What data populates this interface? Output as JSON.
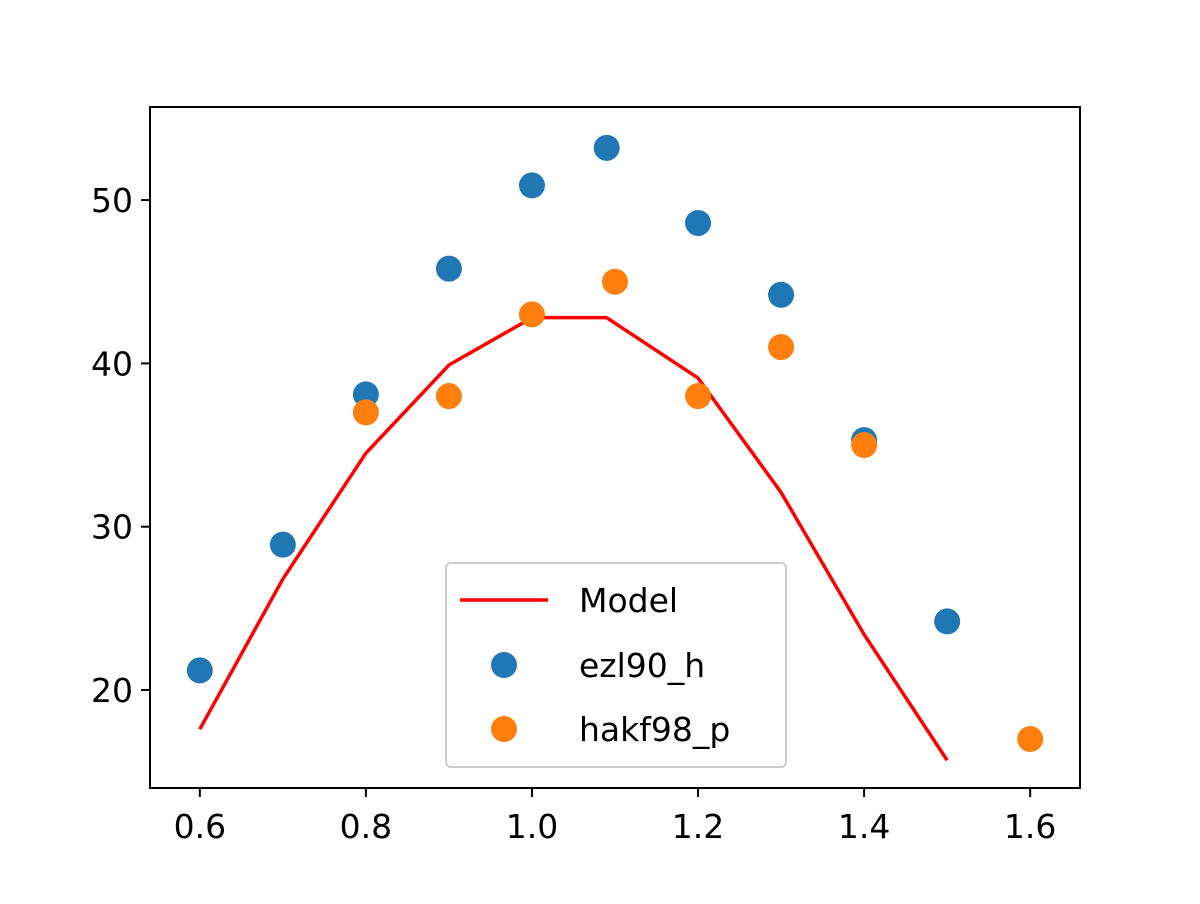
{
  "chart_data": {
    "type": "scatter",
    "title": "",
    "xlabel": "",
    "ylabel": "",
    "xlim": [
      0.54,
      1.66
    ],
    "ylim": [
      14,
      55.7
    ],
    "xticks": [
      0.6,
      0.8,
      1.0,
      1.2,
      1.4,
      1.6
    ],
    "xtick_labels": [
      "0.6",
      "0.8",
      "1.0",
      "1.2",
      "1.4",
      "1.6"
    ],
    "yticks": [
      20,
      30,
      40,
      50
    ],
    "ytick_labels": [
      "20",
      "30",
      "40",
      "50"
    ],
    "grid": false,
    "legend_position": "lower-center",
    "series": [
      {
        "name": "Model",
        "kind": "line",
        "color": "#ff0000",
        "x": [
          0.6,
          0.7,
          0.8,
          0.9,
          1.0,
          1.09,
          1.2,
          1.3,
          1.4,
          1.5
        ],
        "y": [
          17.6,
          26.8,
          34.5,
          39.9,
          42.8,
          42.8,
          39.1,
          32.1,
          23.4,
          15.7
        ]
      },
      {
        "name": "ezl90_h",
        "kind": "scatter",
        "color": "#1f77b4",
        "x": [
          0.6,
          0.7,
          0.8,
          0.9,
          1.0,
          1.09,
          1.2,
          1.3,
          1.4,
          1.5
        ],
        "y": [
          21.2,
          28.9,
          38.1,
          45.8,
          50.9,
          53.2,
          48.6,
          44.2,
          35.3,
          24.2
        ]
      },
      {
        "name": "hakf98_p",
        "kind": "scatter",
        "color": "#ff7f0e",
        "x": [
          0.8,
          0.9,
          1.0,
          1.1,
          1.2,
          1.3,
          1.4,
          1.6
        ],
        "y": [
          37.0,
          38.0,
          43.0,
          45.0,
          38.0,
          41.0,
          35.0,
          17.0
        ]
      }
    ]
  }
}
